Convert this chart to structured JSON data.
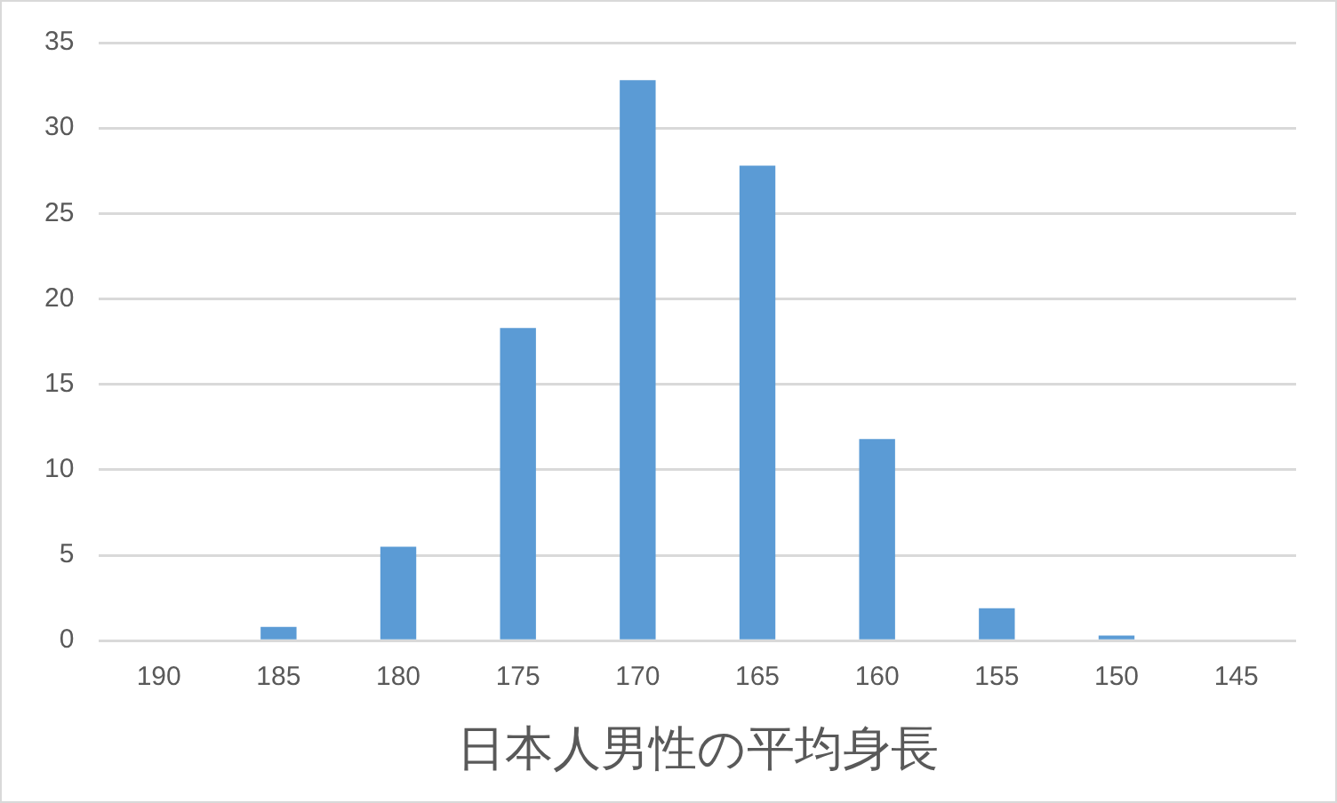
{
  "chart_data": {
    "type": "bar",
    "xlabel": "日本人男性の平均身長",
    "categories": [
      "190",
      "185",
      "180",
      "175",
      "170",
      "165",
      "160",
      "155",
      "150",
      "145"
    ],
    "values": [
      0,
      0.8,
      5.5,
      18.3,
      32.8,
      27.8,
      11.8,
      1.9,
      0.3,
      0
    ],
    "color": "#5b9bd5",
    "ylim": [
      0,
      35
    ],
    "yticks": [
      0,
      5,
      10,
      15,
      20,
      25,
      30,
      35
    ],
    "grid": "y",
    "legend": false
  }
}
